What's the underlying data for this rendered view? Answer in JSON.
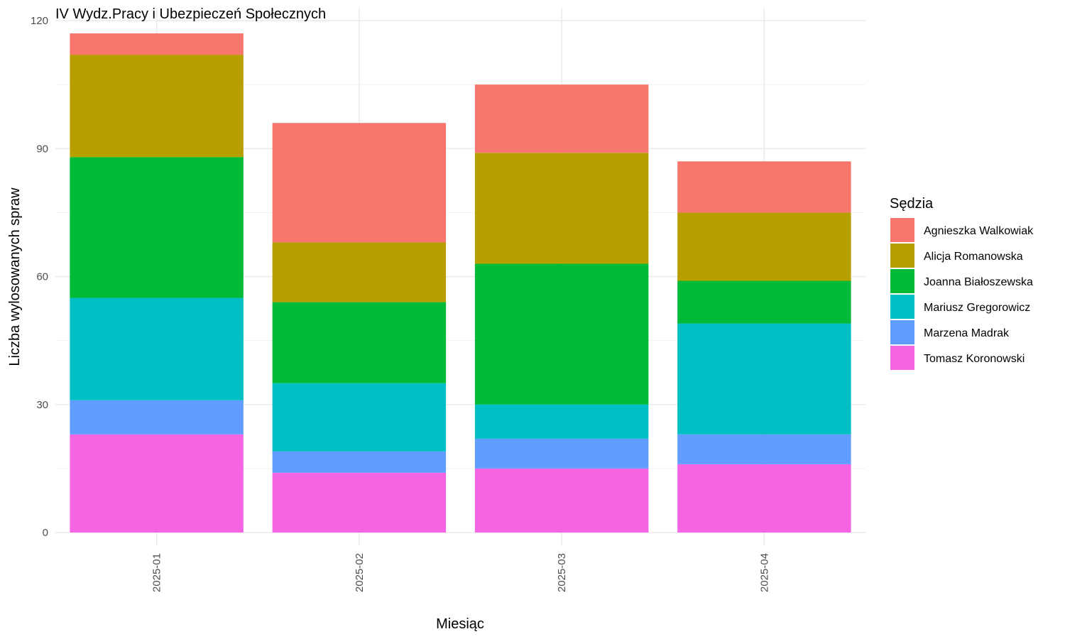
{
  "chart_data": {
    "type": "bar",
    "stacked": true,
    "title": "IV Wydz.Pracy i Ubezpieczeń Społecznych",
    "xlabel": "Miesiąc",
    "ylabel": "Liczba wylosowanych spraw",
    "ylim": [
      0,
      120
    ],
    "yticks": [
      0,
      30,
      60,
      90,
      120
    ],
    "grid": true,
    "legend_position": "right",
    "legend_title": "Sędzia",
    "categories": [
      "2025-01",
      "2025-02",
      "2025-03",
      "2025-04"
    ],
    "series": [
      {
        "name": "Agnieszka Walkowiak",
        "color": "#F8766D",
        "values": [
          5,
          28,
          16,
          12
        ]
      },
      {
        "name": "Alicja Romanowska",
        "color": "#B79F00",
        "values": [
          24,
          14,
          26,
          16
        ]
      },
      {
        "name": "Joanna Białoszewska",
        "color": "#00BA38",
        "values": [
          33,
          19,
          33,
          10
        ]
      },
      {
        "name": "Mariusz Gregorowicz",
        "color": "#00BFC4",
        "values": [
          24,
          16,
          8,
          26
        ]
      },
      {
        "name": "Marzena Madrak",
        "color": "#619CFF",
        "values": [
          8,
          5,
          7,
          7
        ]
      },
      {
        "name": "Tomasz Koronowski",
        "color": "#F564E3",
        "values": [
          23,
          14,
          15,
          16
        ]
      }
    ]
  }
}
